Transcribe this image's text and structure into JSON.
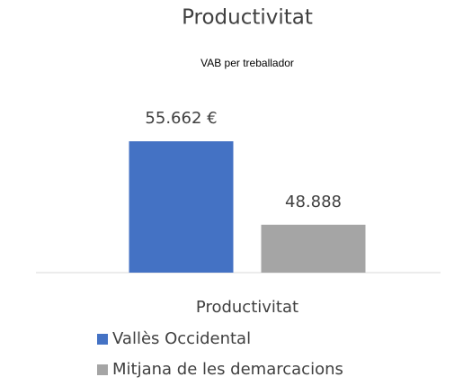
{
  "chart_data": {
    "type": "bar",
    "title": "Productivitat",
    "subtitle": "VAB per treballador",
    "categories": [
      "Productivitat"
    ],
    "series": [
      {
        "name": "Vallès Occidental",
        "color": "#4472c4",
        "values": [
          55662
        ],
        "value_labels": [
          "55.662 €"
        ]
      },
      {
        "name": "Mitjana de les demarcacions",
        "color": "#a5a5a5",
        "values": [
          48888
        ],
        "value_labels": [
          "48.888"
        ]
      }
    ],
    "ylim": [
      45000,
      58000
    ],
    "legend": "bottom"
  }
}
